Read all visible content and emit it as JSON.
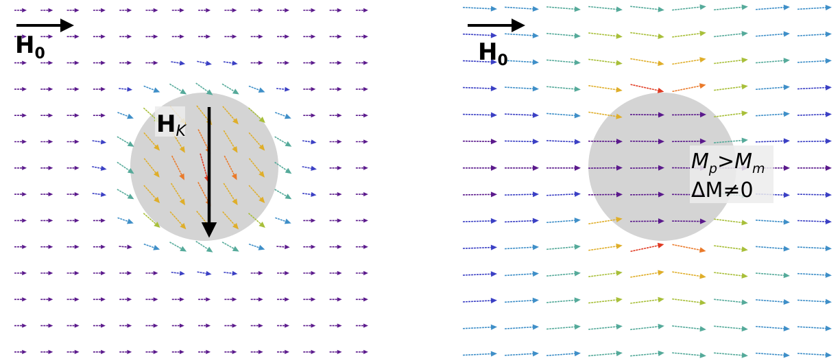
{
  "left_panel": {
    "field_label": "H",
    "field_subscript": "0",
    "anisotropy_label": "H",
    "anisotropy_subscript": "K"
  },
  "right_panel": {
    "field_label": "H",
    "field_subscript": "0",
    "condition_line1": {
      "a": "M",
      "a_sub": "p",
      "op": ">",
      "b": "M",
      "b_sub": "m"
    },
    "condition_line2": "ΔM≠0"
  },
  "colors": {
    "particle": "#d4d4d4",
    "arrow_scale": [
      "#5b1a8c",
      "#3b40c4",
      "#3f8fc8",
      "#55aa9a",
      "#a8bf3a",
      "#dfae2a",
      "#ea7a2a",
      "#e03a22"
    ]
  },
  "icons": [
    "arrow-right-icon",
    "arrow-down-icon"
  ]
}
